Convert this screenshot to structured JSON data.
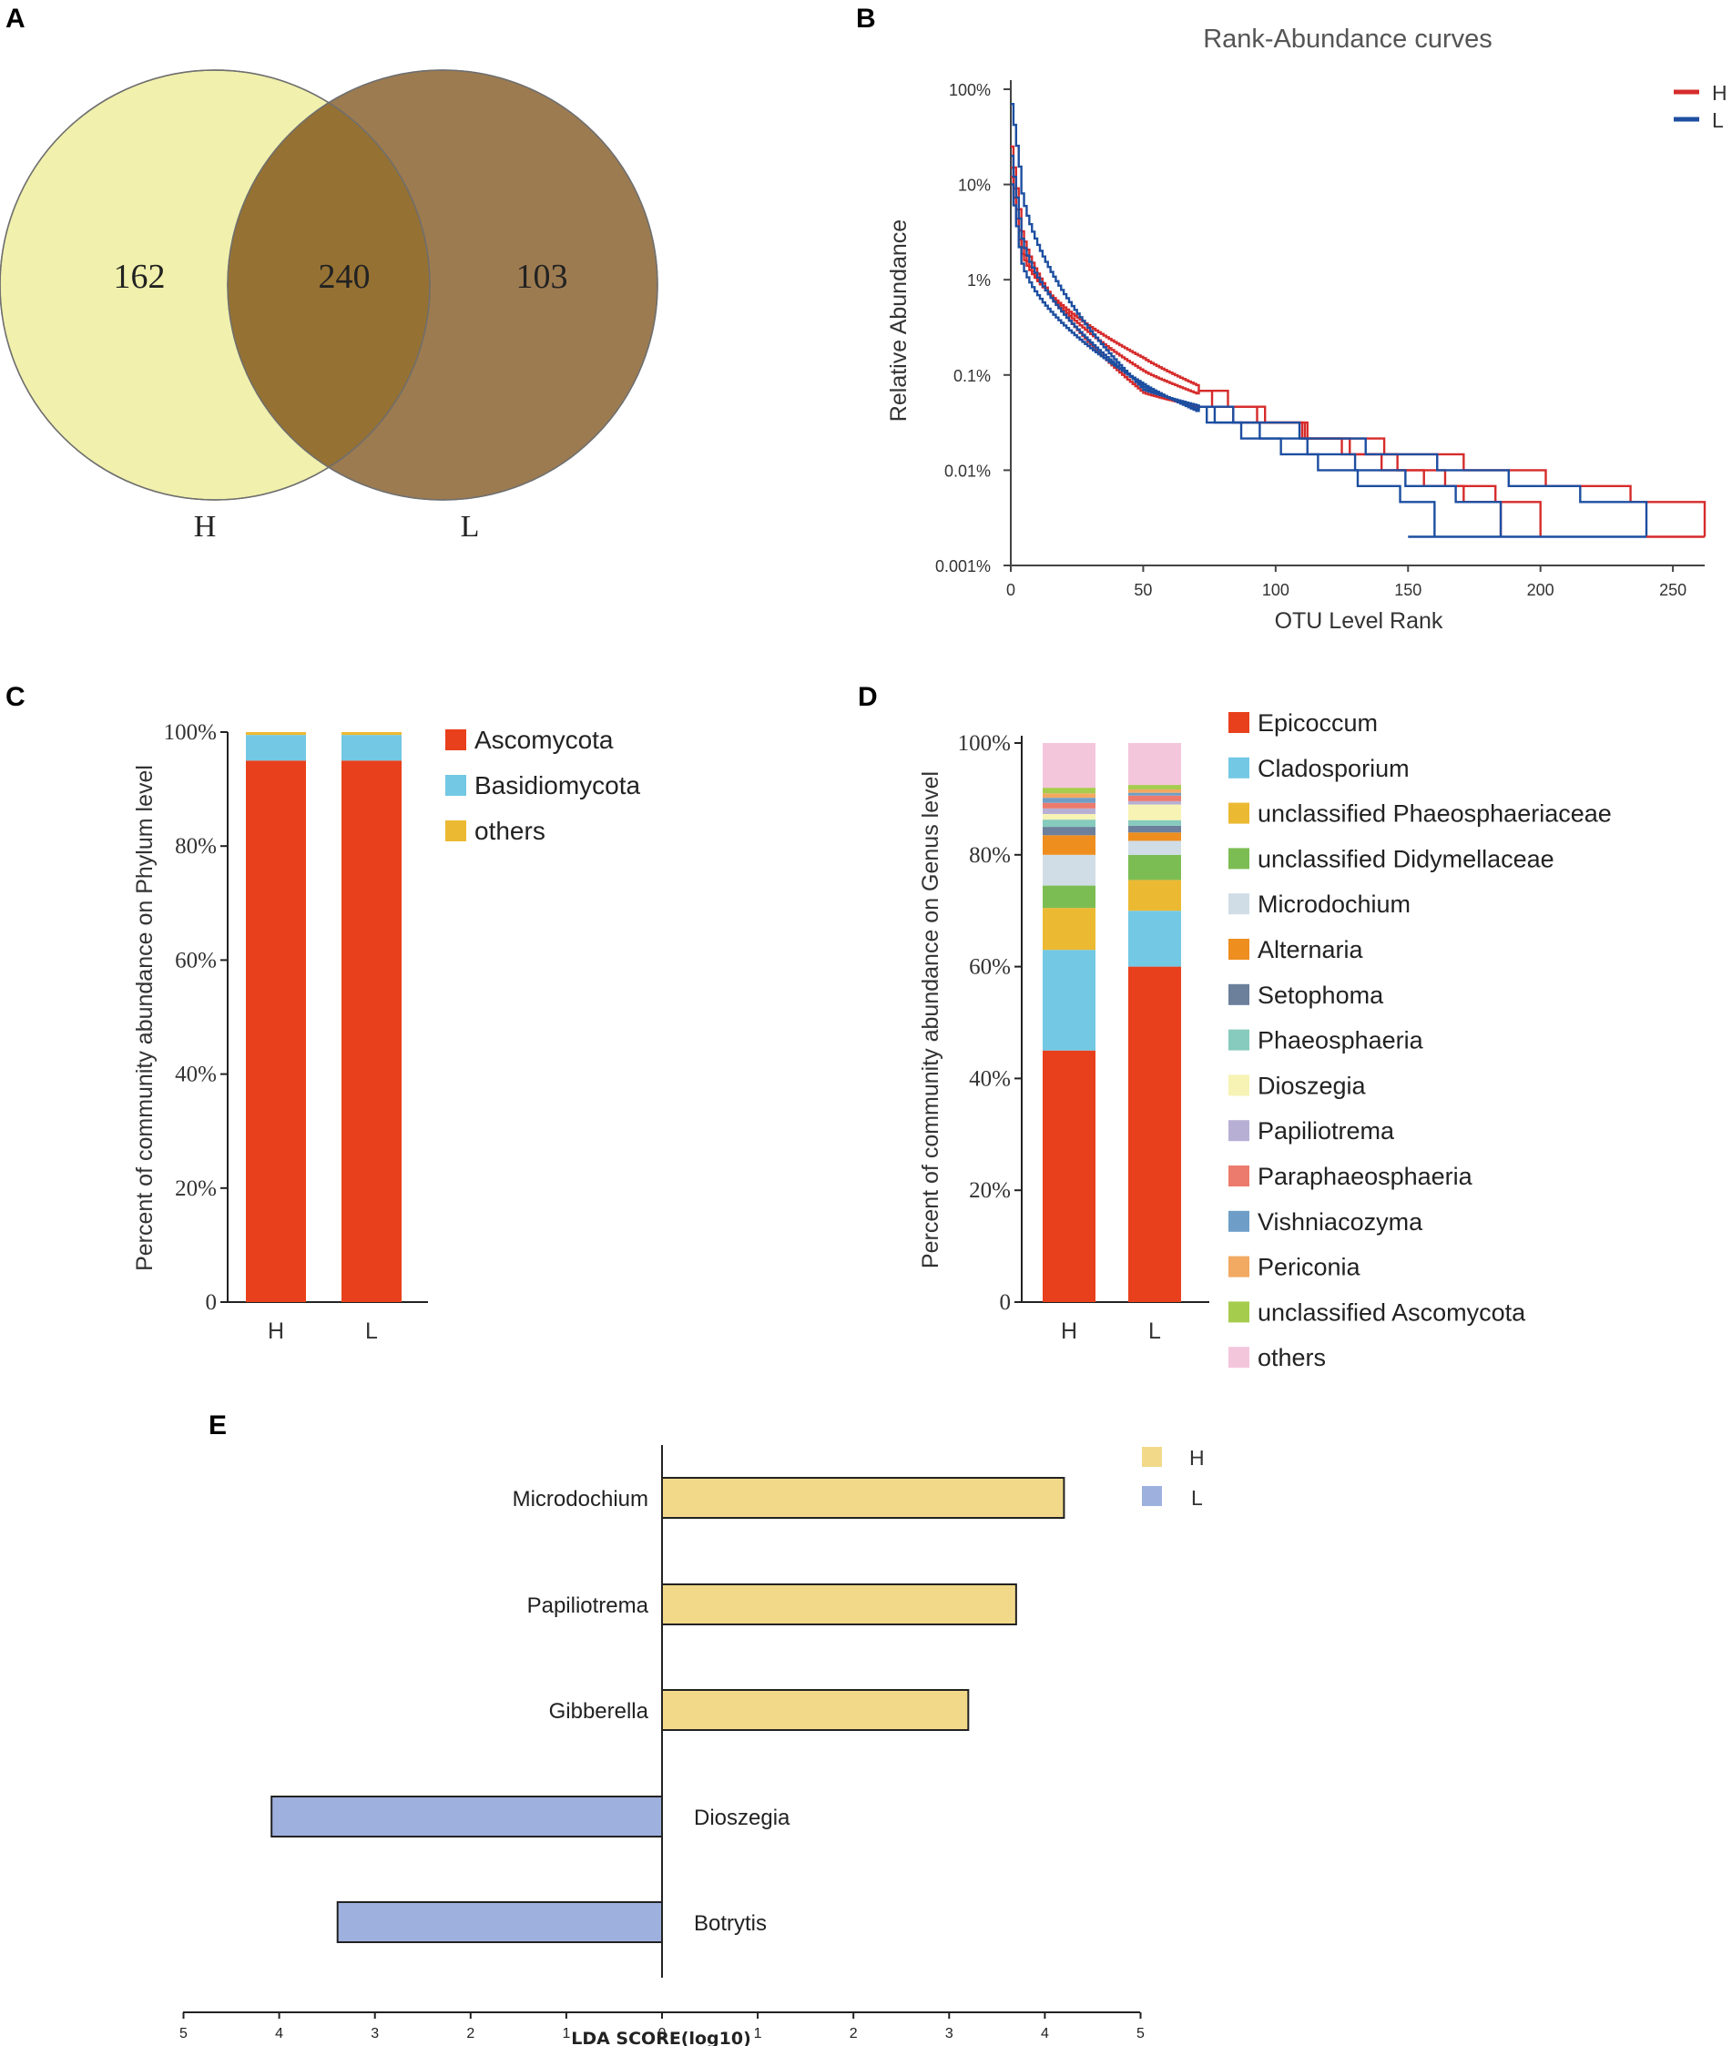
{
  "panels": {
    "a": "A",
    "b": "B",
    "c": "C",
    "d": "D",
    "e": "E"
  },
  "chart_data": [
    {
      "panel": "A",
      "type": "venn",
      "sets": [
        {
          "label": "H",
          "color": "#f1f0ac"
        },
        {
          "label": "L",
          "color": "#7e5219"
        }
      ],
      "overlap_color": "#957133",
      "counts": {
        "only_H": "162",
        "shared": "240",
        "only_L": "103"
      }
    },
    {
      "panel": "B",
      "type": "line",
      "title": "Rank-Abundance curves",
      "xlabel": "OTU Level Rank",
      "ylabel": "Relative Abundance",
      "xlim": [
        0,
        262
      ],
      "xticks": [
        "0",
        "50",
        "100",
        "150",
        "200",
        "250"
      ],
      "ylim_log10": [
        -5,
        0
      ],
      "yticks": [
        "100%",
        "10%",
        "1%",
        "0.1%",
        "0.01%",
        "0.001%"
      ],
      "legend": [
        {
          "name": "H",
          "color": "#d62b2b"
        },
        {
          "name": "L",
          "color": "#1d4ea0"
        }
      ],
      "series": [
        {
          "group": "H",
          "end_rank": 262,
          "start_pct": 25,
          "mid_rank": 50,
          "mid_pct": 0.065
        },
        {
          "group": "H",
          "end_rank": 200,
          "start_pct": 15,
          "mid_rank": 50,
          "mid_pct": 0.11
        },
        {
          "group": "H",
          "end_rank": 185,
          "start_pct": 12,
          "mid_rank": 50,
          "mid_pct": 0.15
        },
        {
          "group": "L",
          "end_rank": 240,
          "start_pct": 70,
          "mid_rank": 50,
          "mid_pct": 0.07
        },
        {
          "group": "L",
          "end_rank": 185,
          "start_pct": 20,
          "mid_rank": 50,
          "mid_pct": 0.075
        },
        {
          "group": "L",
          "end_rank": 160,
          "start_pct": 10,
          "mid_rank": 50,
          "mid_pct": 0.08
        }
      ]
    },
    {
      "panel": "C",
      "type": "stacked-bar",
      "ylabel": "Percent of community abundance on Phylum level",
      "yticks": [
        "0",
        "20%",
        "40%",
        "60%",
        "80%",
        "100%"
      ],
      "categories": [
        "H",
        "L"
      ],
      "series": [
        {
          "name": "Ascomycota",
          "color": "#e8401c",
          "values": [
            95,
            95
          ]
        },
        {
          "name": "Basidiomycota",
          "color": "#73c8e4",
          "values": [
            4.5,
            4.5
          ]
        },
        {
          "name": "others",
          "color": "#ecb933",
          "values": [
            0.5,
            0.5
          ]
        }
      ]
    },
    {
      "panel": "D",
      "type": "stacked-bar",
      "ylabel": "Percent of community abundance on Genus level",
      "yticks": [
        "0",
        "20%",
        "40%",
        "60%",
        "80%",
        "100%"
      ],
      "categories": [
        "H",
        "L"
      ],
      "series": [
        {
          "name": "Epicoccum",
          "color": "#e8401c",
          "values": [
            45,
            60
          ]
        },
        {
          "name": "Cladosporium",
          "color": "#73c8e4",
          "values": [
            18,
            10
          ]
        },
        {
          "name": "unclassified Phaeosphaeriaceae",
          "color": "#ecb933",
          "values": [
            7.5,
            5.5
          ]
        },
        {
          "name": "unclassified Didymellaceae",
          "color": "#7cbd53",
          "values": [
            4,
            4.5
          ]
        },
        {
          "name": "Microdochium",
          "color": "#d0dde6",
          "values": [
            5.5,
            2.5
          ]
        },
        {
          "name": "Alternaria",
          "color": "#ee8e1f",
          "values": [
            3.5,
            1.5
          ]
        },
        {
          "name": "Setophoma",
          "color": "#6c7f9b",
          "values": [
            1.5,
            1.2
          ]
        },
        {
          "name": "Phaeosphaeria",
          "color": "#86cbbd",
          "values": [
            1.3,
            1
          ]
        },
        {
          "name": "Dioszegia",
          "color": "#f6f3b4",
          "values": [
            1,
            2.8
          ]
        },
        {
          "name": "Papiliotrema",
          "color": "#b8b0d4",
          "values": [
            1,
            0.6
          ]
        },
        {
          "name": "Paraphaeosphaeria",
          "color": "#ec7b6d",
          "values": [
            1,
            1
          ]
        },
        {
          "name": "Vishniacozyma",
          "color": "#6e9ec7",
          "values": [
            0.9,
            0.5
          ]
        },
        {
          "name": "Periconia",
          "color": "#f2a961",
          "values": [
            0.8,
            0.6
          ]
        },
        {
          "name": "unclassified Ascomycota",
          "color": "#a6cc4e",
          "values": [
            1,
            0.8
          ]
        },
        {
          "name": "others",
          "color": "#f4c6dc",
          "values": [
            8,
            7.5
          ]
        }
      ]
    },
    {
      "panel": "E",
      "type": "bar",
      "orientation": "horizontal",
      "xlabel": "LDA SCORE(log10)",
      "xticks": [
        "5",
        "4",
        "3",
        "2",
        "1",
        "0",
        "1",
        "2",
        "3",
        "4",
        "5"
      ],
      "xlim": [
        -5,
        5
      ],
      "legend": [
        {
          "name": "H",
          "color": "#f2d98a"
        },
        {
          "name": "L",
          "color": "#9eb0dd"
        }
      ],
      "bars": [
        {
          "label": "Microdochium",
          "group": "H",
          "value": 4.2
        },
        {
          "label": "Papiliotrema",
          "group": "H",
          "value": 3.7
        },
        {
          "label": "Gibberella",
          "group": "H",
          "value": 3.2
        },
        {
          "label": "Dioszegia",
          "group": "L",
          "value": -4.08
        },
        {
          "label": "Botrytis",
          "group": "L",
          "value": -3.39
        }
      ]
    }
  ]
}
